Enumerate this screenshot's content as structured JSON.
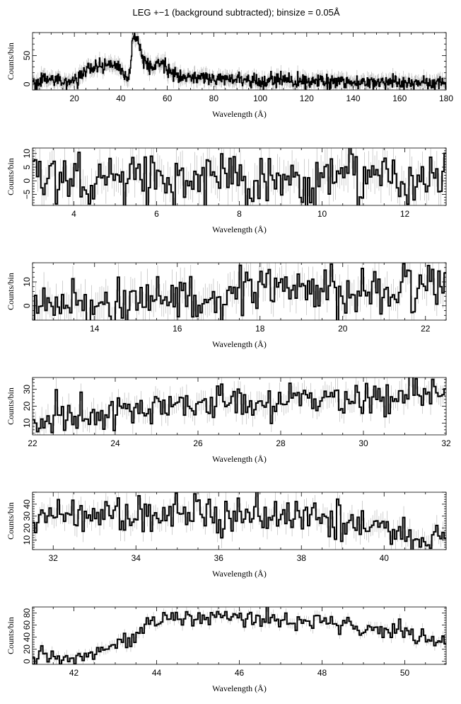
{
  "title": "LEG +−1 (background subtracted); binsize = 0.05Å",
  "chart_data": [
    {
      "type": "line",
      "xlabel": "Wavelength (Å)",
      "ylabel": "Counts/bin",
      "xlim": [
        2,
        180
      ],
      "ylim": [
        -10,
        90
      ],
      "xticks": [
        20,
        40,
        60,
        80,
        100,
        120,
        140,
        160,
        180
      ],
      "yticks": [
        0,
        50
      ],
      "ytick_labels": [
        "0",
        "50"
      ],
      "series": [
        {
          "x": [
            2,
            5,
            10,
            15,
            20,
            22,
            25,
            28,
            30,
            32,
            35,
            38,
            40,
            42,
            43,
            44,
            45,
            46,
            47,
            48,
            49,
            50,
            52,
            54,
            56,
            58,
            60,
            62,
            65,
            70,
            75,
            80,
            90,
            100,
            110,
            120,
            130,
            140,
            150,
            160,
            170,
            175,
            178,
            180
          ],
          "y": [
            3,
            5,
            8,
            6,
            7,
            12,
            22,
            27,
            28,
            30,
            35,
            32,
            28,
            10,
            8,
            20,
            78,
            80,
            75,
            68,
            52,
            38,
            30,
            28,
            33,
            37,
            30,
            20,
            14,
            13,
            11,
            10,
            7,
            6,
            6,
            5,
            4,
            4,
            4,
            3,
            2,
            2,
            1,
            1
          ],
          "error": 10
        }
      ]
    },
    {
      "type": "line",
      "xlabel": "Wavelength (Å)",
      "ylabel": "Counts/bin",
      "xlim": [
        3,
        13
      ],
      "ylim": [
        -9,
        12
      ],
      "xticks": [
        4,
        6,
        8,
        10,
        12
      ],
      "yticks": [
        -5,
        0,
        5,
        10
      ],
      "ytick_labels": [
        "−5",
        "0",
        "5",
        "10"
      ],
      "series": [
        {
          "x": [
            3,
            3.5,
            4,
            4.5,
            5,
            5.5,
            6,
            6.5,
            7,
            7.5,
            8,
            8.5,
            9,
            9.5,
            10,
            10.5,
            11,
            11.5,
            12,
            12.5,
            13
          ],
          "y": [
            2,
            1,
            3,
            0,
            1,
            0,
            2,
            1,
            2,
            1,
            1,
            0,
            1,
            0,
            2,
            1,
            3,
            1,
            2,
            0,
            1
          ],
          "error": 6
        }
      ]
    },
    {
      "type": "line",
      "xlabel": "Wavelength (Å)",
      "ylabel": "Counts/bin",
      "xlim": [
        12.5,
        22.5
      ],
      "ylim": [
        -6,
        18
      ],
      "xticks": [
        14,
        16,
        18,
        20,
        22
      ],
      "yticks": [
        0,
        10
      ],
      "ytick_labels": [
        "0",
        "10"
      ],
      "series": [
        {
          "x": [
            12.5,
            13,
            13.5,
            14,
            14.5,
            15,
            15.5,
            16,
            16.5,
            17,
            17.5,
            18,
            18.5,
            19,
            19.5,
            20,
            20.5,
            21,
            21.5,
            22,
            22.5
          ],
          "y": [
            0,
            1,
            2,
            1,
            2,
            3,
            2,
            3,
            4,
            4,
            5,
            5,
            6,
            6,
            6,
            5,
            7,
            6,
            7,
            9,
            12
          ],
          "error": 6
        }
      ]
    },
    {
      "type": "line",
      "xlabel": "Wavelength (Å)",
      "ylabel": "Counts/bin",
      "xlim": [
        22,
        32
      ],
      "ylim": [
        3,
        37
      ],
      "xticks": [
        22,
        24,
        26,
        28,
        30,
        32
      ],
      "yticks": [
        10,
        20,
        30
      ],
      "ytick_labels": [
        "10",
        "20",
        "30"
      ],
      "series": [
        {
          "x": [
            22,
            22.5,
            23,
            23.5,
            24,
            24.5,
            25,
            25.5,
            26,
            26.5,
            27,
            27.5,
            28,
            28.5,
            29,
            29.5,
            30,
            30.5,
            31,
            31.5,
            32
          ],
          "y": [
            9,
            11,
            13,
            15,
            16,
            17,
            18,
            19,
            20,
            21,
            22,
            23,
            25,
            26,
            24,
            25,
            24,
            26,
            27,
            28,
            28
          ],
          "error": 6
        }
      ]
    },
    {
      "type": "line",
      "xlabel": "Wavelength (Å)",
      "ylabel": "Counts/bin",
      "xlim": [
        31.5,
        41.5
      ],
      "ylim": [
        2,
        50
      ],
      "xticks": [
        32,
        34,
        36,
        38,
        40
      ],
      "yticks": [
        10,
        20,
        30,
        40
      ],
      "ytick_labels": [
        "10",
        "20",
        "30",
        "40"
      ],
      "series": [
        {
          "x": [
            31.5,
            32,
            32.5,
            33,
            33.5,
            34,
            34.5,
            35,
            35.5,
            36,
            36.5,
            37,
            37.5,
            38,
            38.5,
            39,
            39.5,
            40,
            40.5,
            41,
            41.5
          ],
          "y": [
            30,
            31,
            33,
            34,
            35,
            32,
            31,
            33,
            34,
            30,
            31,
            32,
            29,
            28,
            27,
            25,
            24,
            20,
            16,
            13,
            12
          ],
          "error": 8
        }
      ]
    },
    {
      "type": "line",
      "xlabel": "Wavelength (Å)",
      "ylabel": "Counts/bin",
      "xlim": [
        41,
        51
      ],
      "ylim": [
        -5,
        90
      ],
      "xticks": [
        42,
        44,
        46,
        48,
        50
      ],
      "yticks": [
        0,
        20,
        40,
        60,
        80
      ],
      "ytick_labels": [
        "0",
        "20",
        "40",
        "60",
        "80"
      ],
      "series": [
        {
          "x": [
            41,
            41.5,
            42,
            42.5,
            43,
            43.25,
            43.5,
            43.75,
            44,
            44.5,
            45,
            45.5,
            46,
            46.5,
            47,
            47.5,
            48,
            48.5,
            49,
            49.5,
            50,
            50.5,
            51
          ],
          "y": [
            8,
            7,
            9,
            15,
            25,
            32,
            42,
            65,
            70,
            72,
            73,
            71,
            72,
            70,
            68,
            67,
            64,
            60,
            56,
            50,
            44,
            38,
            30
          ],
          "error": 8
        }
      ]
    }
  ]
}
